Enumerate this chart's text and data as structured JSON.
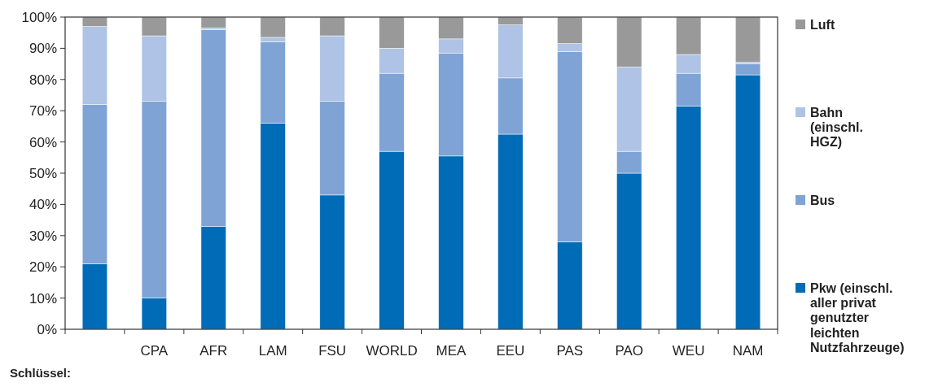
{
  "chart_data": {
    "type": "bar",
    "stacked": true,
    "categories": [
      null,
      "CPA",
      "AFR",
      "LAM",
      "FSU",
      "WORLD",
      "MEA",
      "EEU",
      "PAS",
      "PAO",
      "WEU",
      "NAM"
    ],
    "series": [
      {
        "name": "Pkw (einschl. aller privat genutzter leichten Nutzfahrzeuge)",
        "color": "#006bb6",
        "values": [
          21,
          10,
          33,
          66,
          43,
          57,
          55.5,
          62.5,
          28,
          50,
          71.5,
          81.5
        ]
      },
      {
        "name": "Bus",
        "color": "#7fa3d5",
        "values": [
          51,
          63,
          63,
          26,
          30,
          25,
          33,
          18,
          61,
          7,
          10.5,
          3.5
        ]
      },
      {
        "name": "Bahn (einschl. HGZ)",
        "color": "#aec3e5",
        "values": [
          25,
          21,
          0.5,
          1.5,
          21,
          8,
          4.5,
          17,
          2.5,
          27,
          6,
          0.5
        ]
      },
      {
        "name": "Luft",
        "color": "#999999",
        "values": [
          3,
          6,
          3.5,
          6.5,
          6,
          10,
          7,
          2.5,
          8.5,
          16,
          12,
          14.5
        ]
      }
    ],
    "ylim": [
      0,
      100
    ],
    "yticks": [
      {
        "value": 0,
        "label": "0%"
      },
      {
        "value": 10,
        "label": "10%"
      },
      {
        "value": 20,
        "label": "20%"
      },
      {
        "value": 30,
        "label": "30%"
      },
      {
        "value": 40,
        "label": "40%"
      },
      {
        "value": 50,
        "label": "50%"
      },
      {
        "value": 60,
        "label": "60%"
      },
      {
        "value": 70,
        "label": "70%"
      },
      {
        "value": 80,
        "label": "80%"
      },
      {
        "value": 90,
        "label": "90%"
      },
      {
        "value": 100,
        "label": "100%"
      }
    ],
    "grid": false,
    "legend": "right",
    "annotations": [
      "Schlüssel:"
    ]
  }
}
